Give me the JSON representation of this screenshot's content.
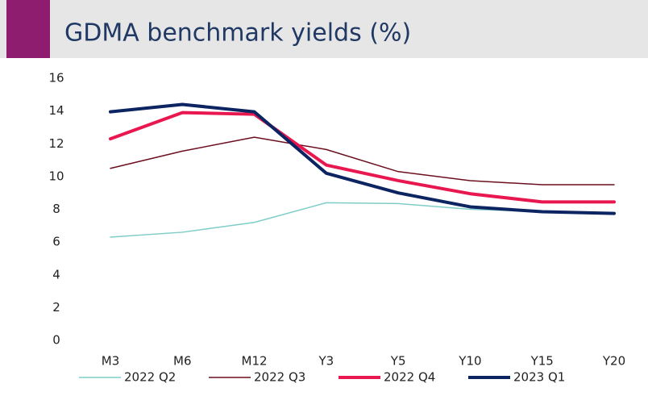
{
  "chart_data": {
    "type": "line",
    "title": "GDMA benchmark yields (%)",
    "categories": [
      "M3",
      "M6",
      "M12",
      "Y3",
      "Y5",
      "Y10",
      "Y15",
      "Y20"
    ],
    "series": [
      {
        "name": "2022 Q2",
        "color": "#7ecdc8",
        "line_width": 1.5,
        "values": [
          6.3,
          6.6,
          7.2,
          8.4,
          8.35,
          8.0,
          7.85,
          7.75
        ]
      },
      {
        "name": "2022 Q3",
        "color": "#6b0f1f",
        "line_width": 1.5,
        "values": [
          10.5,
          11.55,
          12.4,
          11.65,
          10.3,
          9.75,
          9.5,
          9.5
        ]
      },
      {
        "name": "2022 Q4",
        "color": "#e8174f",
        "line_width": 4,
        "values": [
          12.3,
          13.9,
          13.8,
          10.7,
          9.75,
          8.95,
          8.45,
          8.45
        ]
      },
      {
        "name": "2023 Q1",
        "color": "#0c2461",
        "line_width": 4,
        "values": [
          13.95,
          14.4,
          13.95,
          10.2,
          9.0,
          8.15,
          7.85,
          7.75
        ]
      }
    ],
    "ylim": [
      0,
      16
    ],
    "yticks": [
      0,
      2,
      4,
      6,
      8,
      10,
      12,
      14,
      16
    ],
    "grid": false,
    "legend": "bottom"
  }
}
